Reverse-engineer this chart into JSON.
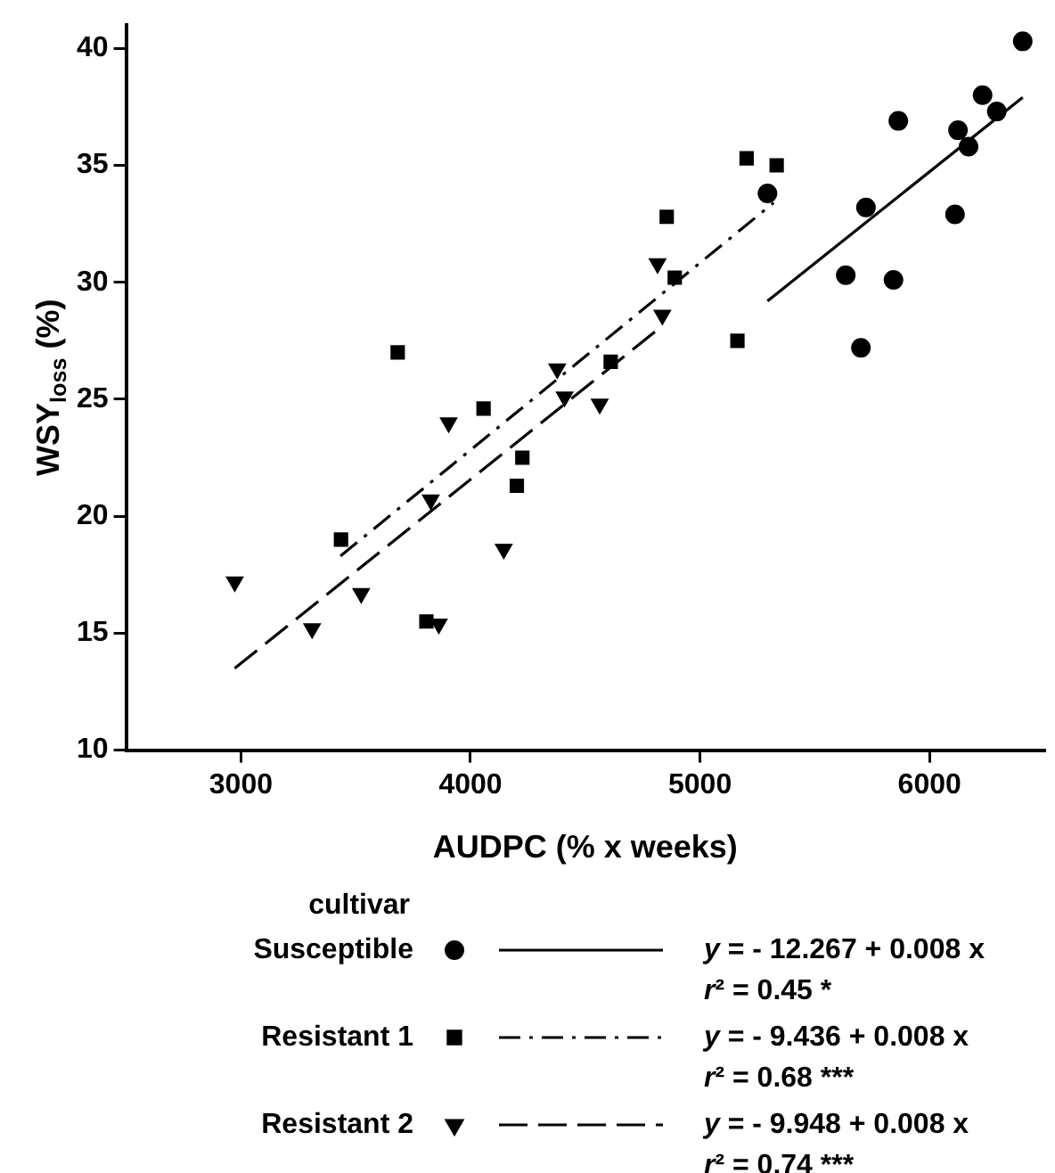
{
  "chart_data": {
    "type": "scatter",
    "xlabel": "AUDPC (% x weeks)",
    "ylabel": "WSY$_{loss}$ (%)",
    "legend_title": "cultivar",
    "legend": "bottom",
    "grid": false,
    "xlim": [
      2500,
      6500
    ],
    "xticks": [
      3000,
      4000,
      5000,
      6000
    ],
    "ylim": [
      10,
      41
    ],
    "yticks": [
      10,
      15,
      20,
      25,
      30,
      35,
      40
    ],
    "series": [
      {
        "name": "Susceptible",
        "color": "#000000",
        "marker": "circle",
        "x": [
          5294,
          5723,
          5635,
          5843,
          5701,
          5864,
          6124,
          6170,
          6111,
          6231,
          6293,
          6406
        ],
        "values": [
          33.8,
          33.2,
          30.3,
          30.1,
          27.2,
          36.9,
          36.5,
          35.8,
          32.9,
          38.0,
          37.3,
          40.3
        ]
      },
      {
        "name": "Resistant 1",
        "color": "#000000",
        "marker": "square",
        "x": [
          3683,
          4057,
          4226,
          4202,
          3436,
          3808,
          4611,
          4890,
          4855,
          5203,
          5334,
          5163
        ],
        "values": [
          27.0,
          24.6,
          22.5,
          21.3,
          19.0,
          15.5,
          26.6,
          30.2,
          32.8,
          35.3,
          35.0,
          27.5
        ]
      },
      {
        "name": "Resistant 2",
        "color": "#000000",
        "marker": "triangle",
        "x": [
          2973,
          3310,
          3524,
          3862,
          3905,
          3827,
          4145,
          4378,
          4410,
          4563,
          4815,
          4836
        ],
        "values": [
          17.2,
          15.2,
          16.7,
          15.4,
          24.0,
          20.7,
          18.6,
          26.3,
          25.1,
          24.8,
          30.8,
          28.6
        ]
      },
      {
        "type": "line",
        "color": "#000000",
        "line_style": "solid",
        "marker": "none",
        "x": [
          5294,
          6406
        ],
        "values": [
          29.2,
          37.9
        ]
      },
      {
        "type": "line",
        "color": "#000000",
        "line_style": "dashdot",
        "marker": "none",
        "x": [
          3434,
          5321
        ],
        "values": [
          18.3,
          33.4
        ]
      },
      {
        "type": "line",
        "color": "#000000",
        "line_style": "dashed",
        "marker": "none",
        "x": [
          2973,
          4831
        ],
        "values": [
          13.5,
          28.1
        ]
      }
    ],
    "annotations": [
      "y = - 12.267 + 0.008 x",
      "r² = 0.45 *",
      "y = - 9.436 + 0.008 x",
      "r² = 0.68 ***",
      "y = - 9.948 + 0.008 x",
      "r² = 0.74 ***"
    ]
  }
}
